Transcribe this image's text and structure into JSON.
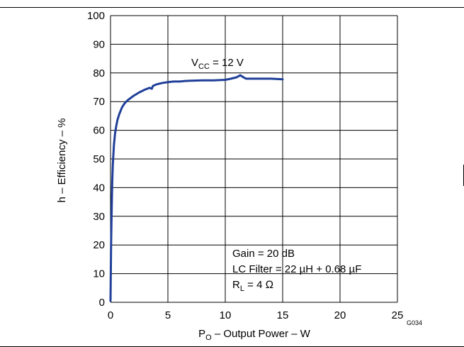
{
  "chart_data": {
    "type": "line",
    "xlabel": {
      "main": "P",
      "sub": "O",
      "rest": " – Output Power – W"
    },
    "ylabel": "h – Efficiency – %",
    "xlim": [
      0,
      25
    ],
    "ylim": [
      0,
      100
    ],
    "xticks": [
      0,
      5,
      10,
      15,
      20,
      25
    ],
    "yticks": [
      0,
      10,
      20,
      30,
      40,
      50,
      60,
      70,
      80,
      90,
      100
    ],
    "grid": true,
    "series": [
      {
        "x": [
          0.0,
          0.05,
          0.1,
          0.15,
          0.2,
          0.3,
          0.4,
          0.5,
          0.6,
          0.75,
          1.0,
          1.25,
          1.5,
          2.0,
          2.5,
          3.0,
          3.4,
          3.6,
          3.7,
          4.0,
          4.5,
          5.0,
          5.5,
          6.0,
          6.5,
          7.0,
          8.0,
          9.0,
          10.0,
          10.5,
          11.0,
          11.3,
          11.5,
          11.8,
          12.0,
          13.0,
          14.0,
          15.0
        ],
        "y": [
          0.5,
          20.0,
          32.0,
          42.0,
          48.0,
          55.0,
          59.0,
          61.5,
          63.5,
          65.5,
          68.0,
          69.5,
          70.5,
          72.0,
          73.2,
          74.2,
          74.8,
          74.5,
          75.5,
          76.0,
          76.5,
          76.8,
          77.0,
          77.0,
          77.2,
          77.3,
          77.4,
          77.4,
          77.6,
          78.0,
          78.5,
          79.2,
          78.7,
          78.0,
          78.0,
          78.0,
          78.0,
          77.8
        ]
      }
    ],
    "annotations": {
      "vcc": {
        "main": "V",
        "sub": "CC",
        "rest": " = 12 V"
      },
      "gain": "Gain = 20 dB",
      "lc_filter": "LC Filter = 22 µH + 0.68 µF",
      "rl": {
        "main": "R",
        "sub": "L",
        "rest": " = 4 Ω"
      }
    },
    "figure_id": "G034",
    "line_color": "#1f3f99"
  }
}
